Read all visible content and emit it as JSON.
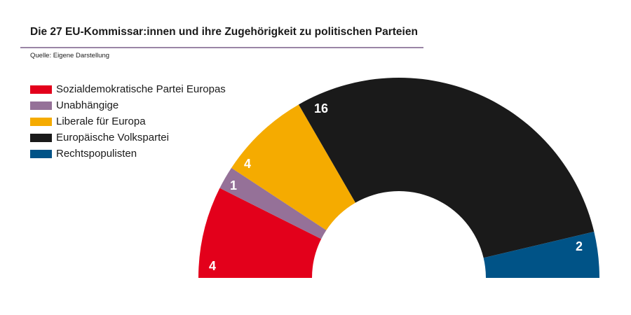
{
  "title": "Die 27 EU-Kommissar:innen und ihre Zugehörigkeit zu politischen Parteien",
  "source": "Quelle: Eigene Darstellung",
  "chart_data": {
    "type": "pie",
    "variant": "half-donut",
    "categories": [
      "Sozialdemokratische Partei Europas",
      "Unabhängige",
      "Liberale für Europa",
      "Europäische Volkspartei",
      "Rechtspopulisten"
    ],
    "values": [
      4,
      1,
      4,
      16,
      2
    ],
    "colors": [
      "#e3001b",
      "#957198",
      "#f5ab00",
      "#1a1a1a",
      "#005387"
    ],
    "legend_position": "top-left"
  }
}
